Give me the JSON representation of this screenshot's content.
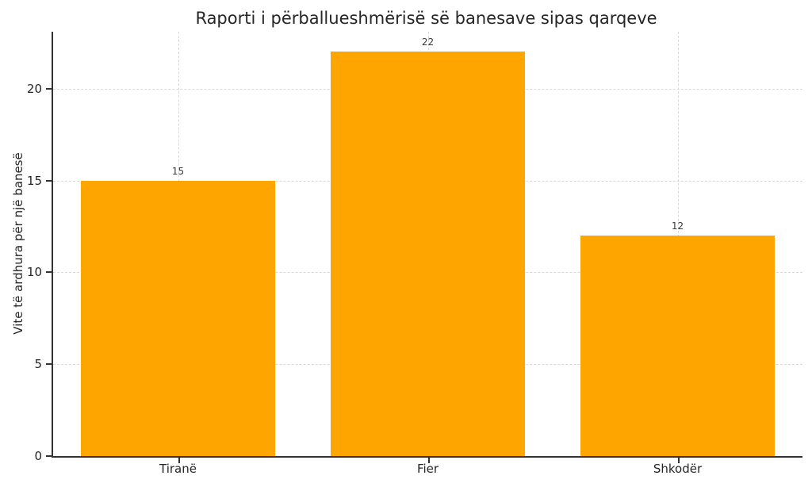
{
  "chart_data": {
    "type": "bar",
    "title": "Raporti i përballueshmërisë së banesave sipas qarqeve",
    "categories": [
      "Tiranë",
      "Fier",
      "Shkodër"
    ],
    "values": [
      15,
      22,
      12
    ],
    "bar_value_labels": [
      "15",
      "22",
      "12"
    ],
    "xlabel": "",
    "ylabel": "Vite të ardhura për një banesë",
    "ylim": [
      0,
      23.1
    ],
    "yticks": [
      0,
      5,
      10,
      15,
      20
    ],
    "grid": true,
    "grid_style": "dashed",
    "legend": "none",
    "colors": {
      "bar": "#FFA500",
      "grid": "#d9d9d9",
      "axis": "#333333",
      "text": "#262626",
      "value_label": "#3c3c3c",
      "background": "#ffffff"
    }
  }
}
